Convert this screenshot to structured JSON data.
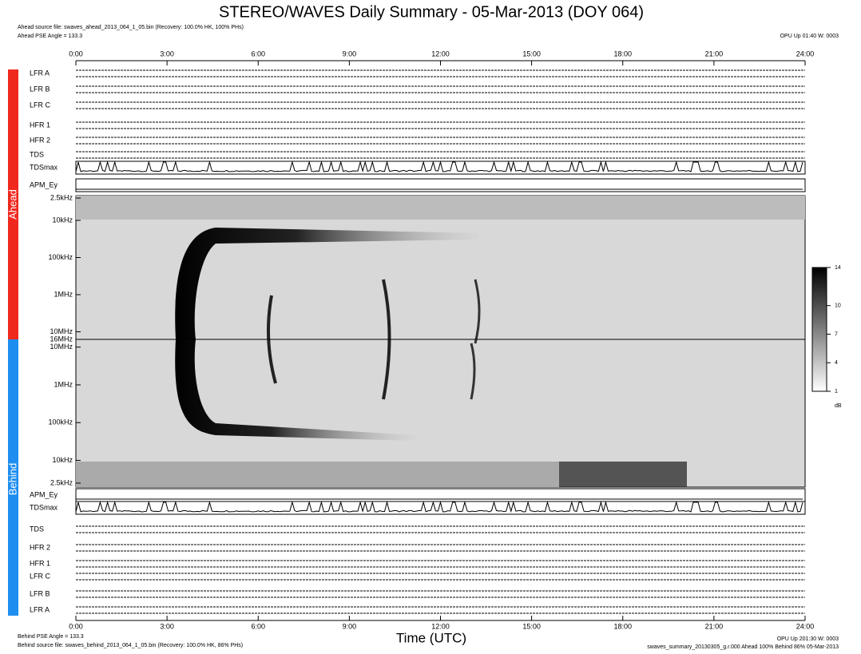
{
  "chart_data": {
    "type": "spectrogram",
    "title": "STEREO/WAVES Daily Summary - 05-Mar-2013 (DOY 064)",
    "xlabel": "Time (UTC)",
    "xlim": [
      0,
      24
    ],
    "xticks": [
      {
        "value": 0,
        "label": "0:00"
      },
      {
        "value": 3,
        "label": "3:00"
      },
      {
        "value": 6,
        "label": "6:00"
      },
      {
        "value": 9,
        "label": "9:00"
      },
      {
        "value": 12,
        "label": "12:00"
      },
      {
        "value": 15,
        "label": "15:00"
      },
      {
        "value": 18,
        "label": "18:00"
      },
      {
        "value": 21,
        "label": "21:00"
      },
      {
        "value": 24,
        "label": "24:00"
      }
    ],
    "ahead_label": "Ahead",
    "behind_label": "Behind",
    "ahead_source": "Ahead source file: swaves_ahead_2013_064_1_05.bin (Recovery: 100.0% HK, 100% PHs)",
    "ahead_angle": "Ahead PSE Angle = 133.3",
    "ahead_status": "OPU Up 01:40 W: 0003",
    "behind_angle": "Behind PSE Angle = 133.3",
    "behind_source": "Behind source file: swaves_behind_2013_064_1_05.bin (Recovery: 100.0% HK, 86% PHs)",
    "behind_status": "OPU Up 201:30 W: 0003",
    "footer_file": "swaves_summary_20130305_g.r.000 Ahead 100% Behind 86% 05-Mar-2013",
    "ahead_panels": [
      "LFR A",
      "LFR B",
      "LFR C",
      "HFR 1",
      "HFR 2",
      "TDS",
      "TDSmax",
      "APM_Ey"
    ],
    "behind_panels": [
      "APM_Ey",
      "TDSmax",
      "TDS",
      "HFR 2",
      "HFR 1",
      "LFR C",
      "LFR B",
      "LFR A"
    ],
    "log_y": true,
    "ahead_ylim": [
      2.5,
      16000
    ],
    "ahead_yticks": [
      {
        "value": 2.5,
        "label": "2.5kHz"
      },
      {
        "value": 10,
        "label": "10kHz"
      },
      {
        "value": 100,
        "label": "100kHz"
      },
      {
        "value": 1000,
        "label": "1MHz"
      },
      {
        "value": 10000,
        "label": "10MHz"
      },
      {
        "value": 16000,
        "label": "16MHz"
      }
    ],
    "behind_ylim": [
      16000,
      2.5
    ],
    "behind_yticks": [
      {
        "value": 10000,
        "label": "10MHz"
      },
      {
        "value": 1000,
        "label": "1MHz"
      },
      {
        "value": 100,
        "label": "100kHz"
      },
      {
        "value": 10,
        "label": "10kHz"
      },
      {
        "value": 2.5,
        "label": "2.5kHz"
      }
    ],
    "clim": [
      1,
      14
    ],
    "cticks": [
      1,
      4,
      7,
      10,
      14
    ],
    "clabel": "dB"
  }
}
